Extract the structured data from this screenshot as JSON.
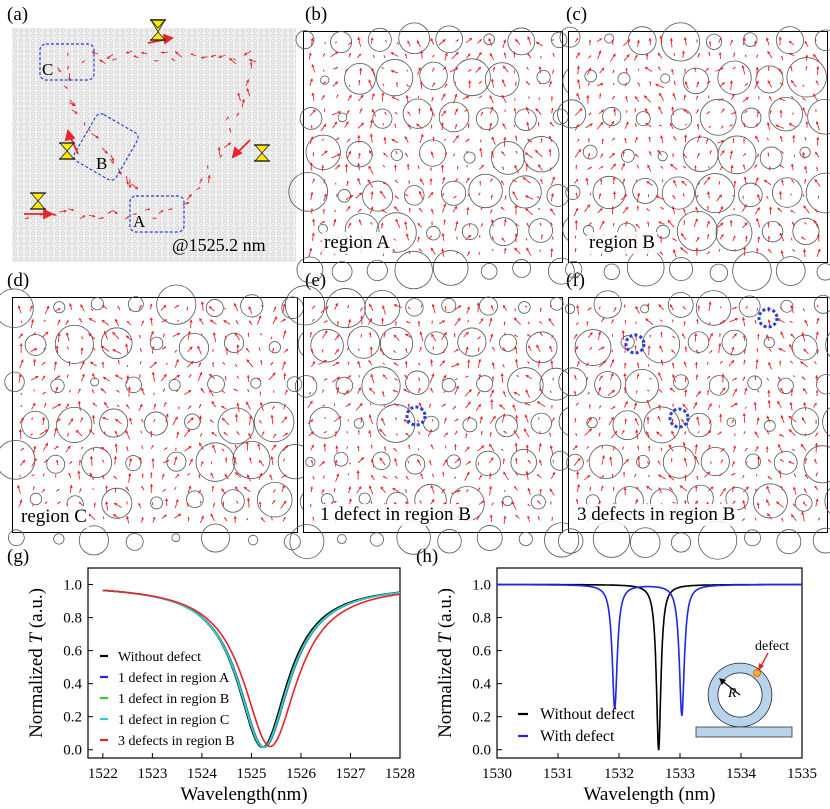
{
  "panel_labels": {
    "a": "(a)",
    "b": "(b)",
    "c": "(c)",
    "d": "(d)",
    "e": "(e)",
    "f": "(f)",
    "g": "(g)",
    "h": "(h)"
  },
  "panel_a": {
    "wavelength": "@1525.2 nm",
    "region_A": "A",
    "region_B": "B",
    "region_C": "C"
  },
  "field_maps": [
    {
      "id": "b",
      "caption": "region A",
      "defects": 0
    },
    {
      "id": "c",
      "caption": "region B",
      "defects": 0
    },
    {
      "id": "d",
      "caption": "region C",
      "defects": 0
    },
    {
      "id": "e",
      "caption": "1 defect in region B",
      "defects": 1
    },
    {
      "id": "f",
      "caption": "3 defects in region B",
      "defects": 3
    }
  ],
  "colors": {
    "field_arrow": "#e8242a",
    "defect_ring": "#2a3fdc",
    "black": "#000000",
    "blue": "#1f26e6",
    "green": "#33cc33",
    "cyan": "#33cccc",
    "red": "#e8242a",
    "ring_fill": "#b8d4ec"
  },
  "chart_data": [
    {
      "panel": "g",
      "type": "line",
      "xlabel": "Wavelength(nm)",
      "ylabel": "Normalized T (a.u.)",
      "ylabel_plain": "Normalized ",
      "ylabel_italic": "T",
      "ylabel_unit": " (a.u.)",
      "xlim": [
        1521.7,
        1528.0
      ],
      "ylim": [
        -0.05,
        1.1
      ],
      "xticks": [
        1522,
        1523,
        1524,
        1525,
        1526,
        1527,
        1528
      ],
      "yticks": [
        0.0,
        0.2,
        0.4,
        0.6,
        0.8,
        1.0
      ],
      "ytick_labels": [
        "0.0",
        "0.2",
        "0.4",
        "0.6",
        "0.8",
        "1.0"
      ],
      "series": [
        {
          "name": "Without defect",
          "color": "#000000",
          "center": 1525.22,
          "width": 0.62,
          "depth": 0.985
        },
        {
          "name": "1 defect in region A",
          "color": "#1f26e6",
          "center": 1525.26,
          "width": 0.63,
          "depth": 0.985
        },
        {
          "name": "1 defect in region B",
          "color": "#33cc33",
          "center": 1525.25,
          "width": 0.63,
          "depth": 0.985
        },
        {
          "name": "1 defect in region C",
          "color": "#33cccc",
          "center": 1525.24,
          "width": 0.63,
          "depth": 0.985
        },
        {
          "name": "3 defects in region B",
          "color": "#e8242a",
          "center": 1525.38,
          "width": 0.66,
          "depth": 0.98
        }
      ]
    },
    {
      "panel": "h",
      "type": "line",
      "xlabel": "Wavelength (nm)",
      "ylabel": "Normalized T (a.u.)",
      "ylabel_plain": "Normalized ",
      "ylabel_italic": "T",
      "ylabel_unit": " (a.u.)",
      "xlim": [
        1530,
        1535
      ],
      "ylim": [
        -0.05,
        1.1
      ],
      "xticks": [
        1530,
        1531,
        1532,
        1533,
        1534,
        1535
      ],
      "yticks": [
        0.0,
        0.2,
        0.4,
        0.6,
        0.8,
        1.0
      ],
      "ytick_labels": [
        "0.0",
        "0.2",
        "0.4",
        "0.6",
        "0.8",
        "1.0"
      ],
      "series": [
        {
          "name": "Without defect",
          "color": "#000000",
          "dips": [
            {
              "center": 1532.65,
              "width": 0.045,
              "depth": 1.0
            }
          ]
        },
        {
          "name": "With defect",
          "color": "#1f26e6",
          "dips": [
            {
              "center": 1531.93,
              "width": 0.05,
              "depth": 0.75
            },
            {
              "center": 1533.03,
              "width": 0.05,
              "depth": 0.79
            }
          ]
        }
      ],
      "inset": {
        "defect_label": "defect",
        "radius_label": "R"
      }
    }
  ]
}
